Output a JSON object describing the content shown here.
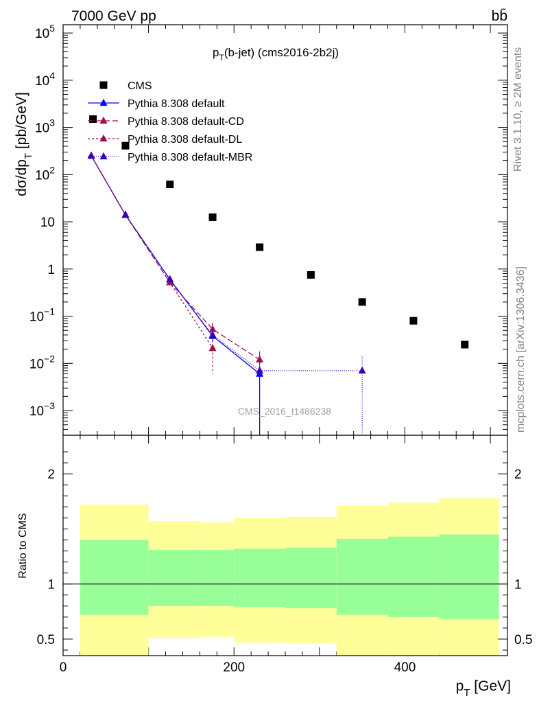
{
  "header": {
    "left": "7000 GeV pp",
    "right": "bb̄"
  },
  "side_labels": {
    "rivet": "Rivet 3.1.10, ≥ 2M events",
    "mcplots": "mcplots.cern.ch [arXiv:1306.3436]"
  },
  "chart_data": {
    "type": "scatter",
    "title": "p_T(b-jet) (cms2016-2b2j)",
    "title_main": "p",
    "title_sub": "T",
    "title_rest": "(b-jet) (cms2016-2b2j)",
    "watermark": "CMS_2016_I1486238",
    "xlabel": "p_T [GeV]",
    "xlabel_main": "p",
    "xlabel_sub": "T",
    "xlabel_rest": " [GeV]",
    "ylabel": "dσ/dp_T [pb/GeV]",
    "ylabel_main": "dσ/dp",
    "ylabel_sub": "T",
    "ylabel_rest": " [pb/GeV]",
    "ratio_ylabel": "Ratio to CMS",
    "xlim": [
      0,
      520
    ],
    "ylim": [
      0.0003,
      150000
    ],
    "yscale": "log",
    "ratio_ylim": [
      0.35,
      2.35
    ],
    "x_ticks": [
      "0",
      "200",
      "400"
    ],
    "y_ticks": [
      {
        "value": 100000,
        "label": "10",
        "exp": "5"
      },
      {
        "value": 10000,
        "label": "10",
        "exp": "4"
      },
      {
        "value": 1000,
        "label": "10",
        "exp": "3"
      },
      {
        "value": 100,
        "label": "10",
        "exp": "2"
      },
      {
        "value": 10,
        "label": "10",
        "exp": ""
      },
      {
        "value": 1,
        "label": "1",
        "exp": ""
      },
      {
        "value": 0.1,
        "label": "10",
        "exp": "−1"
      },
      {
        "value": 0.01,
        "label": "10",
        "exp": "−2"
      },
      {
        "value": 0.001,
        "label": "10",
        "exp": "−3"
      }
    ],
    "ratio_ticks": [
      "0.5",
      "1",
      "2"
    ],
    "legend_position": "top-left",
    "series": [
      {
        "name": "CMS",
        "marker": "square",
        "color": "#000000",
        "x": [
          35,
          73,
          125,
          175,
          230,
          290,
          350,
          410,
          470
        ],
        "y": [
          1500,
          410,
          62,
          12.5,
          2.9,
          0.75,
          0.2,
          0.08,
          0.025
        ]
      },
      {
        "name": "Pythia 8.308 default",
        "marker": "triangle",
        "color": "#0000ff",
        "dash": "",
        "x": [
          33,
          73,
          125,
          175,
          230
        ],
        "y": [
          250,
          14,
          0.6,
          0.038,
          0.006
        ],
        "err_lo": [
          0,
          0,
          0,
          0.01,
          0.006
        ],
        "err_hi": [
          0,
          0,
          0,
          0.01,
          0.003
        ]
      },
      {
        "name": "Pythia 8.308 default-CD",
        "marker": "triangle",
        "color": "#a0104f",
        "dash": "8,4",
        "x": [
          33,
          73,
          125,
          175,
          230
        ],
        "y": [
          250,
          14,
          0.52,
          0.053,
          0.012
        ],
        "err_lo": [
          0,
          0,
          0,
          0.02,
          0.005
        ],
        "err_hi": [
          0,
          0,
          0,
          0.02,
          0.006
        ]
      },
      {
        "name": "Pythia 8.308 default-DL",
        "marker": "triangle",
        "color": "#a0104f",
        "dash": "3,3",
        "x": [
          33,
          73,
          125,
          175
        ],
        "y": [
          250,
          14,
          0.52,
          0.021
        ],
        "err_lo": [
          0,
          0,
          0,
          0.015
        ],
        "err_hi": [
          0,
          0,
          0,
          0.01
        ]
      },
      {
        "name": "Pythia 8.308 default-MBR",
        "marker": "triangle",
        "color": "#3a00b0",
        "dash": "1,2",
        "x": [
          33,
          73,
          125,
          175,
          230,
          350
        ],
        "y": [
          250,
          14,
          0.6,
          0.04,
          0.007,
          0.007
        ],
        "err_lo": [
          0,
          0,
          0,
          0.01,
          0.007,
          0.007
        ],
        "err_hi": [
          0,
          0,
          0,
          0.01,
          0.003,
          0.007
        ]
      }
    ],
    "ratio_bands": [
      {
        "x0": 20,
        "x1": 100,
        "yellow": [
          0.35,
          1.72
        ],
        "green": [
          0.72,
          1.4
        ]
      },
      {
        "x0": 100,
        "x1": 160,
        "yellow": [
          0.51,
          1.57
        ],
        "green": [
          0.8,
          1.31
        ]
      },
      {
        "x0": 160,
        "x1": 200,
        "yellow": [
          0.52,
          1.56
        ],
        "green": [
          0.8,
          1.31
        ]
      },
      {
        "x0": 200,
        "x1": 260,
        "yellow": [
          0.47,
          1.6
        ],
        "green": [
          0.79,
          1.32
        ]
      },
      {
        "x0": 260,
        "x1": 320,
        "yellow": [
          0.46,
          1.61
        ],
        "green": [
          0.78,
          1.33
        ]
      },
      {
        "x0": 320,
        "x1": 380,
        "yellow": [
          0.35,
          1.71
        ],
        "green": [
          0.72,
          1.41
        ]
      },
      {
        "x0": 380,
        "x1": 440,
        "yellow": [
          0.35,
          1.74
        ],
        "green": [
          0.7,
          1.43
        ]
      },
      {
        "x0": 440,
        "x1": 510,
        "yellow": [
          0.35,
          1.78
        ],
        "green": [
          0.68,
          1.45
        ]
      }
    ],
    "band_colors": {
      "yellow": "#ffff99",
      "green": "#99ff99"
    }
  }
}
